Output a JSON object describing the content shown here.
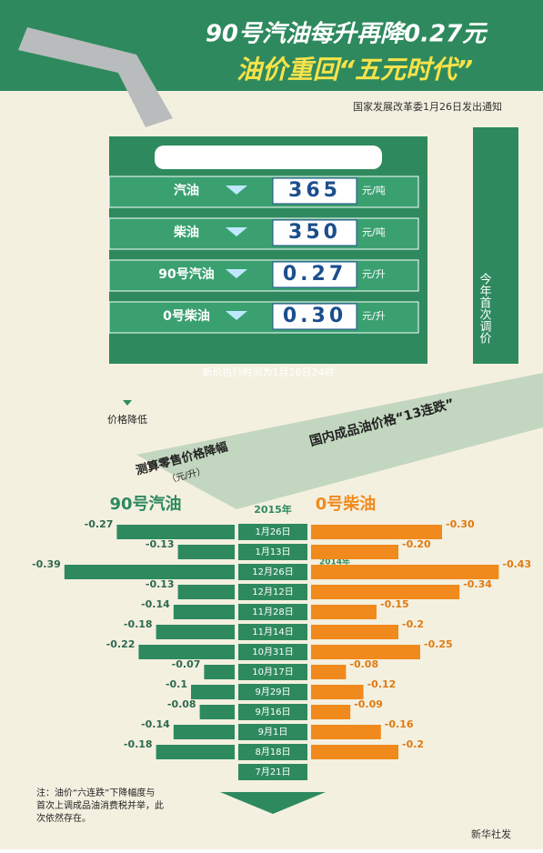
{
  "header": {
    "title_line1": "90号汽油每升再降0.27元",
    "title_line2": "油价重回“五元时代”",
    "note": "国家发展改革委1月26日发出通知"
  },
  "panel": {
    "rows": [
      {
        "label": "汽油",
        "amount": "365",
        "unit": "元/吨"
      },
      {
        "label": "柴油",
        "amount": "350",
        "unit": "元/吨"
      },
      {
        "label": "90号汽油",
        "amount": "0.27",
        "unit": "元/升"
      },
      {
        "label": "0号柴油",
        "amount": "0.30",
        "unit": "元/升"
      }
    ],
    "side_text": "今年首次调价",
    "effective": "新价执行时间为1月26日24时",
    "legend": "价格降低"
  },
  "chart": {
    "left_title": "测算零售价格降幅",
    "left_unit": "（元/升）",
    "right_title": "国内成品油价格“13连跌”",
    "year_labels": [
      "2015年",
      "2014年"
    ],
    "dates": [
      "1月26日",
      "1月13日",
      "12月26日",
      "12月12日",
      "11月28日",
      "11月14日",
      "10月31日",
      "10月17日",
      "9月29日",
      "9月16日",
      "9月1日",
      "8月18日",
      "7月21日"
    ],
    "series": [
      {
        "name": "90号汽油",
        "color": "#2e8a5e",
        "values": [
          -0.27,
          -0.13,
          -0.39,
          -0.13,
          -0.14,
          -0.18,
          -0.22,
          -0.07,
          -0.1,
          -0.08,
          -0.14,
          -0.18,
          null
        ],
        "value_labels": [
          "-0.27",
          "-0.13",
          "-0.39",
          "-0.13",
          "-0.14",
          "-0.18",
          "-0.22",
          "-0.07",
          "-0.1",
          "-0.08",
          "-0.14",
          "-0.18",
          null
        ]
      },
      {
        "name": "0号柴油",
        "color": "#f08a1c",
        "values": [
          -0.3,
          -0.2,
          -0.43,
          -0.34,
          -0.15,
          -0.2,
          -0.25,
          -0.08,
          -0.12,
          -0.09,
          -0.16,
          -0.2,
          null
        ],
        "value_labels": [
          "-0.30",
          "-0.20",
          "-0.43",
          "-0.34",
          "-0.15",
          "-0.2",
          "-0.25",
          "-0.08",
          "-0.12",
          "-0.09",
          "-0.16",
          "-0.2",
          null
        ]
      }
    ]
  },
  "footer": {
    "note": "注：油价“六连跌”下降幅度与首次上调成品油消费税并举，此次依然存在。",
    "source": "新华社发"
  }
}
